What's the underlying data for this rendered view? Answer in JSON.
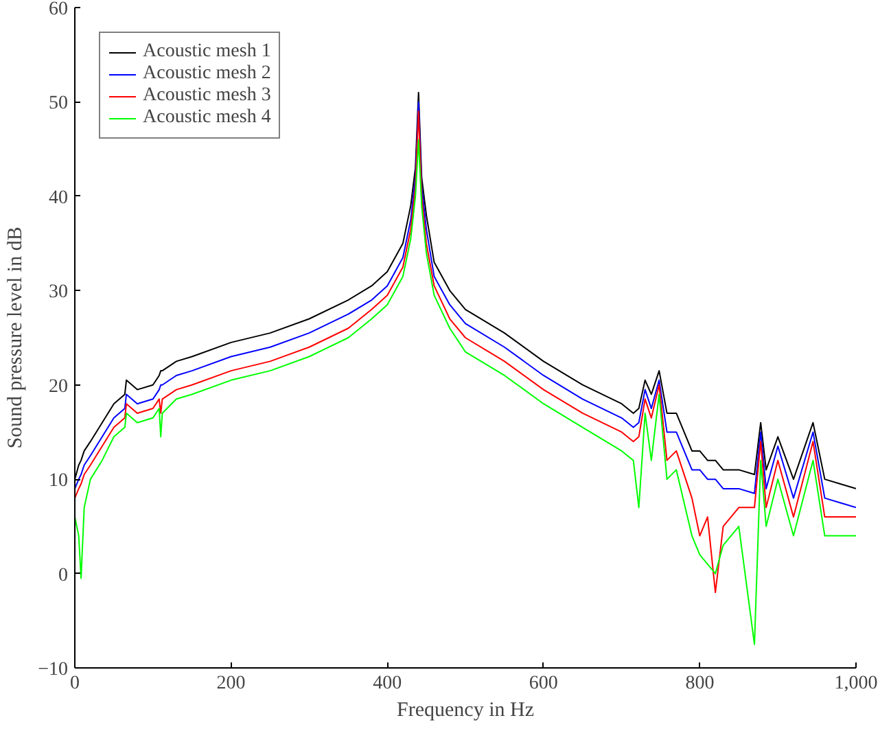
{
  "chart_data": {
    "type": "line",
    "xlabel": "Frequency in Hz",
    "ylabel": "Sound pressure level in dB",
    "x": [
      0,
      5,
      8,
      12,
      20,
      35,
      50,
      64,
      66,
      80,
      100,
      108,
      110,
      112,
      130,
      150,
      200,
      250,
      300,
      350,
      380,
      400,
      420,
      430,
      436,
      440,
      444,
      450,
      460,
      480,
      500,
      550,
      600,
      650,
      700,
      715,
      722,
      730,
      738,
      748,
      758,
      770,
      790,
      800,
      810,
      820,
      830,
      850,
      870,
      878,
      885,
      900,
      920,
      945,
      960,
      980,
      1000
    ],
    "series": [
      {
        "name": "Acoustic mesh 1",
        "color": "#000000",
        "values": [
          10,
          11.5,
          12,
          13,
          14,
          16,
          18,
          19,
          20.5,
          19.5,
          20,
          21,
          21.5,
          21.5,
          22.5,
          23,
          24.5,
          25.5,
          27,
          29,
          30.5,
          32,
          35,
          39,
          43,
          51,
          42,
          38,
          33,
          30,
          28,
          25.5,
          22.5,
          20,
          18,
          17,
          17.5,
          20.5,
          19,
          21.5,
          17,
          17,
          13,
          13,
          12,
          12,
          11,
          11,
          10.5,
          16,
          11,
          14.5,
          10,
          16,
          10,
          9.5,
          9
        ]
      },
      {
        "name": "Acoustic mesh 2",
        "color": "#0000ff",
        "values": [
          9,
          10,
          10.5,
          11.5,
          12.5,
          14.5,
          16.5,
          17.5,
          19,
          18,
          18.5,
          19.5,
          20,
          20,
          21,
          21.5,
          23,
          24,
          25.5,
          27.5,
          29,
          30.5,
          33.5,
          37.5,
          42,
          50,
          41,
          36.5,
          31.5,
          28.5,
          26.5,
          24,
          21,
          18.5,
          16.5,
          15.5,
          16,
          19.5,
          17.5,
          20.5,
          15,
          15,
          11,
          11,
          10,
          10,
          9,
          9,
          8.5,
          15,
          9,
          13.5,
          8,
          15,
          8,
          7.5,
          7
        ]
      },
      {
        "name": "Acoustic mesh 3",
        "color": "#ff0000",
        "values": [
          8,
          9,
          9.5,
          10.5,
          11.5,
          13.5,
          15.5,
          16.5,
          18,
          17,
          17.5,
          18.5,
          17,
          18.5,
          19.5,
          20,
          21.5,
          22.5,
          24,
          26,
          28,
          29.5,
          32.5,
          36.5,
          41,
          49,
          40,
          35,
          30.5,
          27,
          25,
          22.5,
          19.5,
          17,
          15,
          14,
          14.5,
          18.5,
          16.5,
          20,
          12,
          13,
          8,
          4,
          6,
          -2,
          5,
          7,
          7,
          14,
          7,
          12,
          6,
          14,
          6,
          6,
          6
        ]
      },
      {
        "name": "Acoustic mesh 4",
        "color": "#00ff00",
        "values": [
          6,
          4,
          -0.5,
          7,
          10,
          12,
          14.5,
          15.5,
          17,
          16,
          16.5,
          17.5,
          14.5,
          17,
          18.5,
          19,
          20.5,
          21.5,
          23,
          25,
          27,
          28.5,
          31.5,
          35.5,
          40,
          46,
          39,
          34,
          29.5,
          26,
          23.5,
          21,
          18,
          15.5,
          13,
          12,
          7,
          17,
          12,
          19,
          10,
          11,
          4,
          2,
          1,
          0,
          3,
          5,
          -7.5,
          12,
          5,
          10,
          4,
          12,
          4,
          4,
          4
        ]
      }
    ],
    "xlim": [
      0,
      1000
    ],
    "ylim": [
      -10,
      60
    ],
    "xticks": [
      0,
      200,
      400,
      600,
      800,
      {
        "value": 1000,
        "label": "1,000"
      }
    ],
    "yticks": [
      -10,
      0,
      10,
      20,
      30,
      40,
      50,
      60
    ],
    "grid": false,
    "legend": "top left",
    "marker": "none",
    "line_style": "solid"
  }
}
